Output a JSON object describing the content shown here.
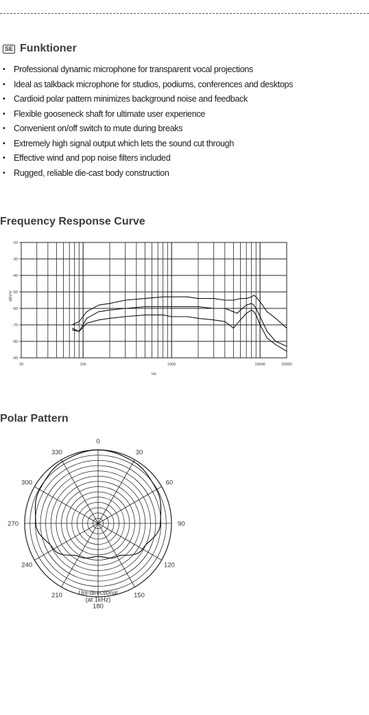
{
  "section": {
    "badge": "SE",
    "title": "Funktioner"
  },
  "features": [
    "Professional dynamic microphone for transparent vocal projections",
    "Ideal as talkback microphone for studios, podiums, conferences and desktops",
    "Cardioid polar pattern minimizes background noise and feedback",
    "Flexible gooseneck shaft for ultimate user experience",
    "Convenient on/off switch to mute during breaks",
    "Extremely high signal output which lets the sound cut through",
    "Effective wind and pop noise filters included",
    "Rugged, reliable die-cast body construction"
  ],
  "frequency": {
    "heading": "Frequency Response Curve"
  },
  "polar": {
    "heading": "Polar Pattern",
    "caption_line1": "Uni-directional",
    "caption_line2": "(at 1kHz)"
  },
  "chart_data": [
    {
      "type": "line",
      "title": "Frequency Response Curve",
      "xlabel": "Hz",
      "ylabel": "dBV/V",
      "xscale": "log",
      "xlim": [
        20,
        20000
      ],
      "ylim": [
        -90,
        -20
      ],
      "x_ticks": [
        "20",
        "100",
        "1000",
        "10000",
        "20000"
      ],
      "y_ticks": [
        "-20",
        "-30",
        "-40",
        "-50",
        "-60",
        "-70",
        "-80",
        "-90"
      ],
      "grid": true,
      "series": [
        {
          "x": [
            75,
            90,
            110,
            150,
            200,
            300,
            500,
            800,
            1000,
            1500,
            2000,
            3000,
            4000,
            5000,
            6000,
            7000,
            8000,
            8500,
            9000,
            10000,
            12000,
            15000,
            20000
          ],
          "y": [
            -70,
            -68,
            -62,
            -58,
            -57,
            -55,
            -54,
            -53,
            -53,
            -53,
            -54,
            -54,
            -55,
            -55,
            -54,
            -54,
            -53,
            -52,
            -53,
            -56,
            -62,
            -66,
            -72
          ]
        },
        {
          "x": [
            75,
            90,
            110,
            150,
            200,
            300,
            500,
            800,
            1000,
            1500,
            2000,
            3000,
            4000,
            5000,
            5500,
            6000,
            7000,
            8000,
            8500,
            9000,
            10000,
            12000,
            15000,
            20000
          ],
          "y": [
            -72,
            -74,
            -66,
            -62,
            -61,
            -60,
            -59,
            -59,
            -59,
            -59,
            -59,
            -60,
            -60,
            -62,
            -63,
            -61,
            -58,
            -57,
            -58,
            -60,
            -65,
            -74,
            -80,
            -83
          ]
        },
        {
          "x": [
            75,
            90,
            110,
            150,
            200,
            300,
            500,
            800,
            1000,
            1500,
            2000,
            3000,
            4000,
            4500,
            5000,
            6000,
            7000,
            8000,
            8500,
            9000,
            10000,
            12000,
            15000,
            20000
          ],
          "y": [
            -73,
            -74,
            -69,
            -67,
            -66,
            -65,
            -64,
            -64,
            -65,
            -65,
            -66,
            -67,
            -68,
            -70,
            -72,
            -67,
            -63,
            -61,
            -62,
            -64,
            -70,
            -78,
            -82,
            -86
          ]
        }
      ]
    },
    {
      "type": "polar",
      "title": "Polar Pattern",
      "angle_labels": [
        "0",
        "30",
        "60",
        "90",
        "120",
        "150",
        "180",
        "210",
        "240",
        "270",
        "300",
        "330"
      ],
      "caption": "Uni-directional (at 1kHz)",
      "series": [
        {
          "angles": [
            0,
            30,
            60,
            90,
            120,
            150,
            180,
            210,
            240,
            270,
            300,
            330
          ],
          "relative_level": [
            1.0,
            0.97,
            0.92,
            0.85,
            0.7,
            0.52,
            0.45,
            0.52,
            0.7,
            0.85,
            0.92,
            0.97
          ]
        }
      ]
    }
  ]
}
